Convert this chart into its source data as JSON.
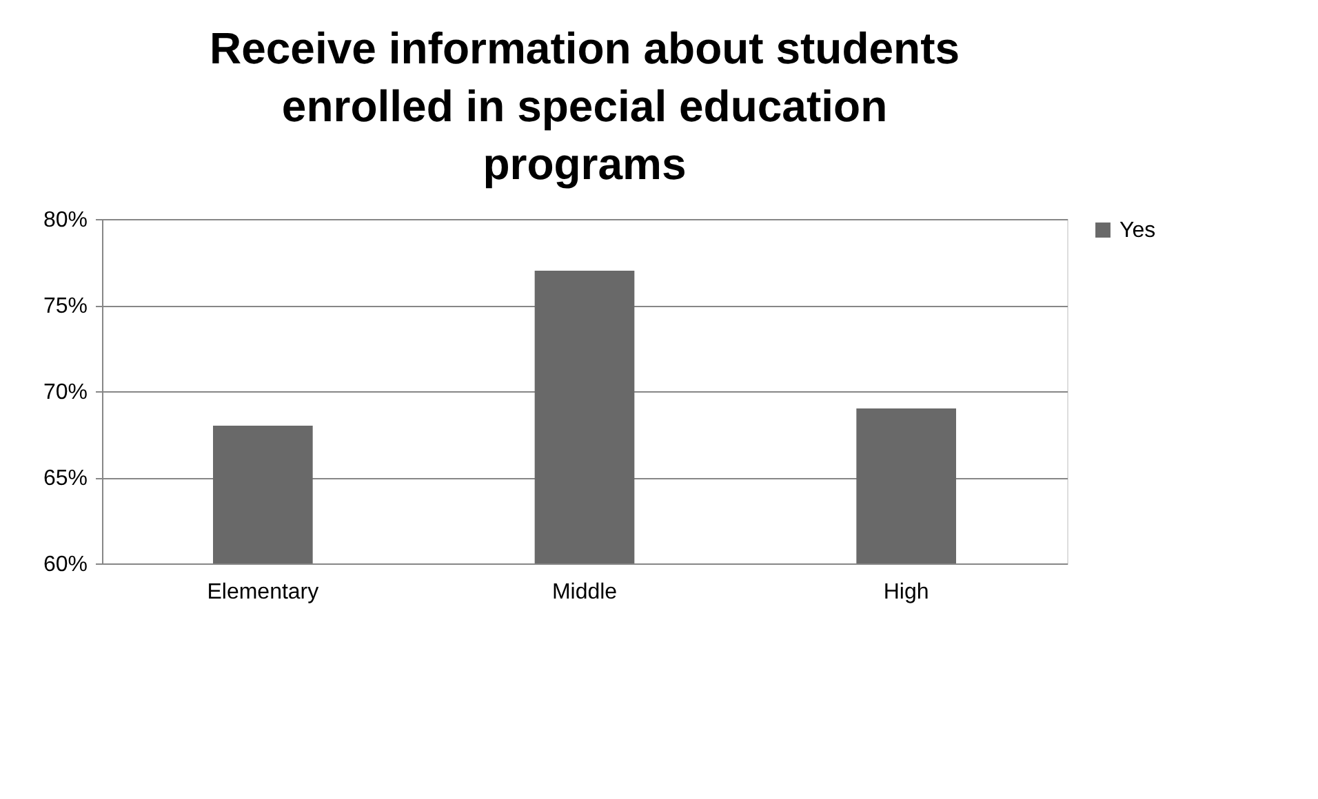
{
  "chart_data": {
    "type": "bar",
    "title": "Receive information about students enrolled in special education programs",
    "categories": [
      "Elementary",
      "Middle",
      "High"
    ],
    "series": [
      {
        "name": "Yes",
        "color": "#696969",
        "values": [
          68,
          77,
          69
        ]
      }
    ],
    "ylim": [
      60,
      80
    ],
    "yticks": [
      {
        "value": 60,
        "label": "60%"
      },
      {
        "value": 65,
        "label": "65%"
      },
      {
        "value": 70,
        "label": "70%"
      },
      {
        "value": 75,
        "label": "75%"
      },
      {
        "value": 80,
        "label": "80%"
      }
    ],
    "grid": "y",
    "legend": "right"
  }
}
